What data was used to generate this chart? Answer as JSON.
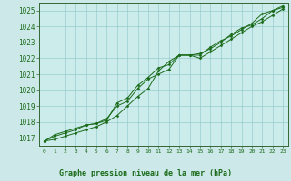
{
  "title": "Graphe pression niveau de la mer (hPa)",
  "background_color": "#cce8e8",
  "plot_bg_color": "#ccecec",
  "grid_color": "#99cccc",
  "line_color": "#1a6b1a",
  "marker_color": "#1a6b1a",
  "xlim": [
    -0.5,
    23.5
  ],
  "ylim": [
    1016.5,
    1025.5
  ],
  "yticks": [
    1017,
    1018,
    1019,
    1020,
    1021,
    1022,
    1023,
    1024,
    1025
  ],
  "xticks": [
    0,
    1,
    2,
    3,
    4,
    5,
    6,
    7,
    8,
    9,
    10,
    11,
    12,
    13,
    14,
    15,
    16,
    17,
    18,
    19,
    20,
    21,
    22,
    23
  ],
  "series": [
    [
      1016.8,
      1016.9,
      1017.1,
      1017.3,
      1017.5,
      1017.7,
      1018.0,
      1018.4,
      1019.0,
      1019.6,
      1020.1,
      1021.2,
      1021.8,
      1022.2,
      1022.2,
      1022.0,
      1022.4,
      1022.8,
      1023.2,
      1023.6,
      1024.0,
      1024.3,
      1024.7,
      1025.1
    ],
    [
      1016.8,
      1017.2,
      1017.4,
      1017.6,
      1017.8,
      1017.9,
      1018.1,
      1019.2,
      1019.5,
      1020.3,
      1020.8,
      1021.4,
      1021.6,
      1022.2,
      1022.2,
      1022.2,
      1022.7,
      1023.1,
      1023.4,
      1023.8,
      1024.2,
      1024.8,
      1025.0,
      1025.3
    ],
    [
      1016.8,
      1017.1,
      1017.3,
      1017.5,
      1017.8,
      1017.9,
      1018.2,
      1019.0,
      1019.3,
      1020.1,
      1020.7,
      1021.0,
      1021.3,
      1022.2,
      1022.2,
      1022.3,
      1022.6,
      1023.0,
      1023.5,
      1023.9,
      1024.1,
      1024.5,
      1025.0,
      1025.2
    ]
  ]
}
